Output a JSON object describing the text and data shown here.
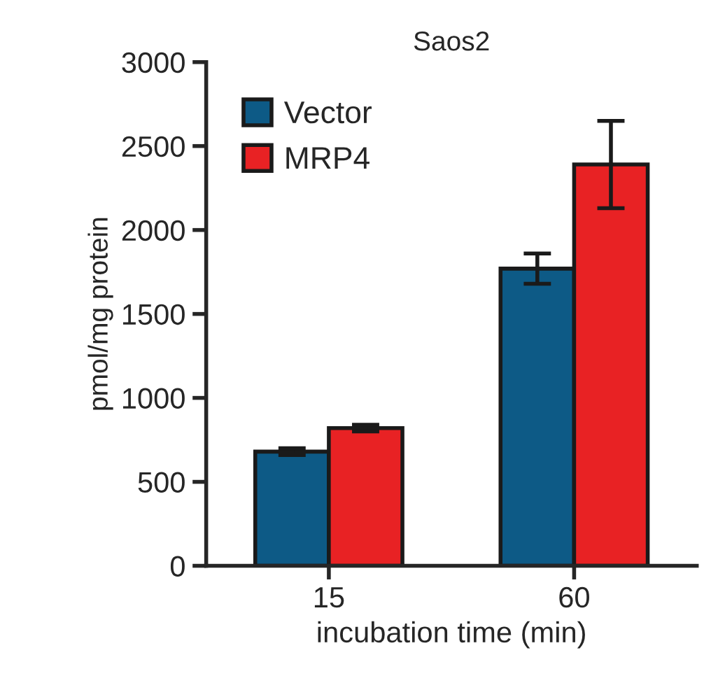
{
  "chart_data": {
    "type": "bar",
    "title": "Saos2",
    "xlabel": "incubation time (min)",
    "ylabel": "pmol/mg protein",
    "categories": [
      "15",
      "60"
    ],
    "series": [
      {
        "name": "Vector",
        "color": "#0d5a86",
        "values": [
          680,
          1770
        ],
        "errors": [
          20,
          90
        ]
      },
      {
        "name": "MRP4",
        "color": "#e82224",
        "values": [
          820,
          2390
        ],
        "errors": [
          20,
          260
        ]
      }
    ],
    "ylim": [
      0,
      3000
    ],
    "yticks": [
      0,
      500,
      1000,
      1500,
      2000,
      2500,
      3000
    ],
    "grid": false,
    "legend": "top left"
  }
}
